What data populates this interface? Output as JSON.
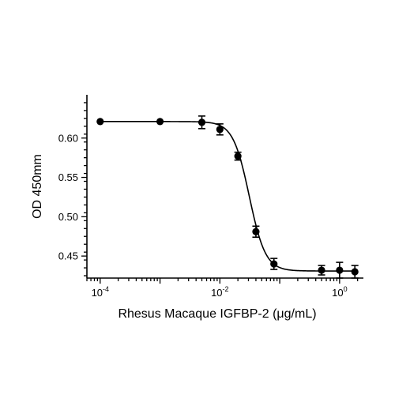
{
  "chart_data": {
    "type": "scatter",
    "xscale": "log",
    "xlabel": "Rhesus Macaque IGFBP-2 (μg/mL)",
    "ylabel": "OD 450mm",
    "xlim": [
      6e-05,
      2.5
    ],
    "ylim": [
      0.422,
      0.655
    ],
    "x_ticks": [
      {
        "value": 0.0001,
        "base": "10",
        "exp": "-4"
      },
      {
        "value": 0.01,
        "base": "10",
        "exp": "-2"
      },
      {
        "value": 1,
        "base": "10",
        "exp": "0"
      }
    ],
    "y_ticks": [
      {
        "value": 0.45,
        "label": "0.45"
      },
      {
        "value": 0.5,
        "label": "0.50"
      },
      {
        "value": 0.55,
        "label": "0.55"
      },
      {
        "value": 0.6,
        "label": "0.60"
      }
    ],
    "points": [
      {
        "x": 0.0001,
        "y": 0.621,
        "err": 0.0
      },
      {
        "x": 0.001,
        "y": 0.621,
        "err": 0.0
      },
      {
        "x": 0.005,
        "y": 0.62,
        "err": 0.008
      },
      {
        "x": 0.01,
        "y": 0.611,
        "err": 0.007
      },
      {
        "x": 0.02,
        "y": 0.577,
        "err": 0.005
      },
      {
        "x": 0.04,
        "y": 0.481,
        "err": 0.007
      },
      {
        "x": 0.08,
        "y": 0.44,
        "err": 0.007
      },
      {
        "x": 0.5,
        "y": 0.432,
        "err": 0.006
      },
      {
        "x": 1.0,
        "y": 0.432,
        "err": 0.01
      },
      {
        "x": 1.8,
        "y": 0.43,
        "err": 0.008
      }
    ],
    "fit": {
      "model": "4PL",
      "top": 0.621,
      "bottom": 0.431,
      "ec50": 0.031,
      "hill": 3.2
    }
  }
}
